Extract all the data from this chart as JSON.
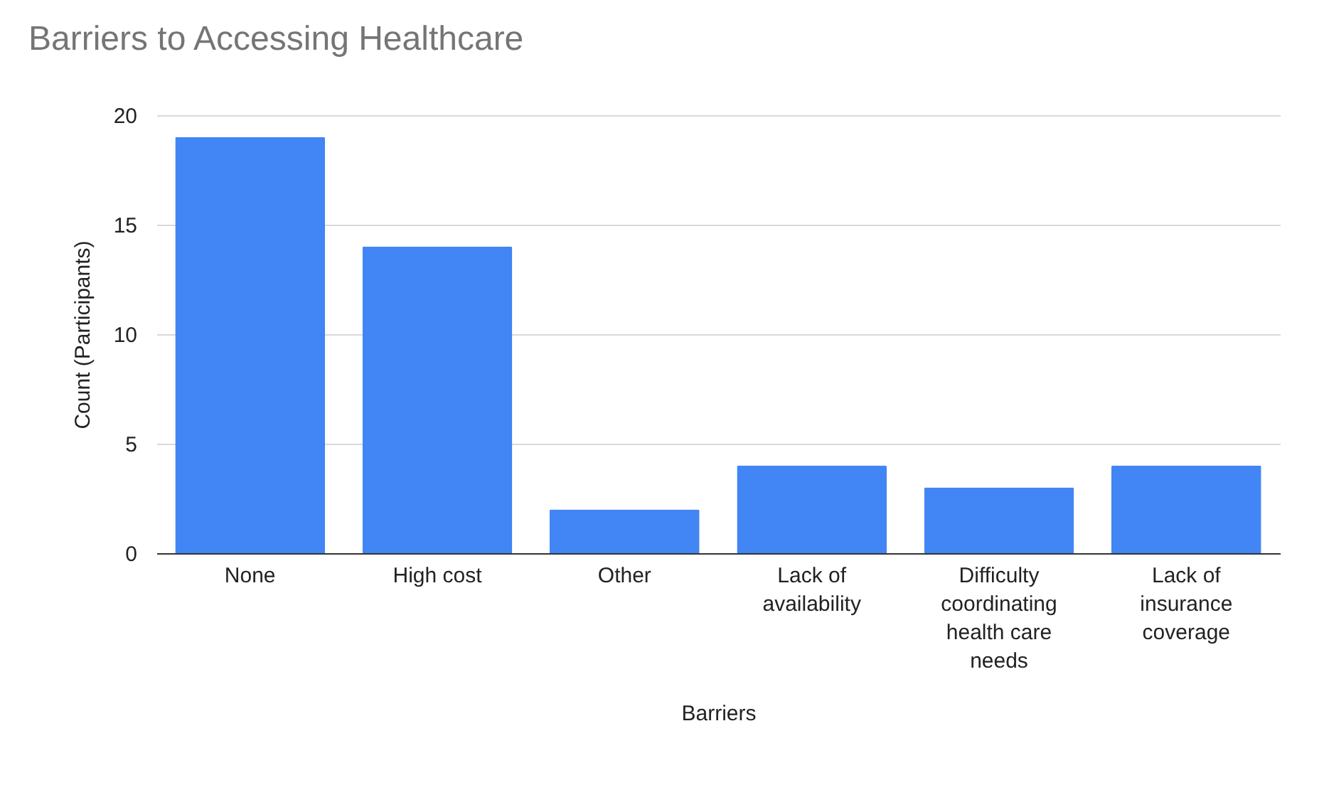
{
  "chart_data": {
    "type": "bar",
    "title": "Barriers to Accessing Healthcare",
    "xlabel": "Barriers",
    "ylabel": "Count (Participants)",
    "categories": [
      "None",
      "High cost",
      "Other",
      "Lack of availability",
      "Difficulty coordinating health care needs",
      "Lack of insurance coverage"
    ],
    "values": [
      19,
      14,
      2,
      4,
      3,
      4
    ],
    "color": "#4285f4",
    "ylim": [
      0,
      20
    ],
    "yticks": [
      0,
      5,
      10,
      15,
      20
    ],
    "grid": "y"
  }
}
